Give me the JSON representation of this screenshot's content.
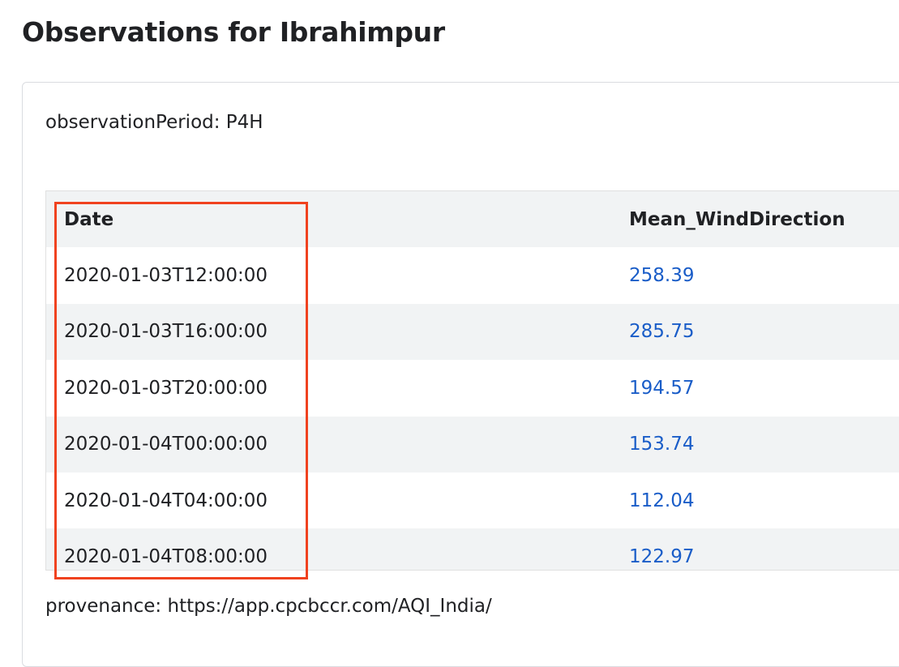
{
  "page": {
    "title": "Observations for Ibrahimpur"
  },
  "card": {
    "observation_period": "observationPeriod: P4H",
    "provenance": "provenance: https://app.cpcbccr.com/AQI_India/"
  },
  "table": {
    "columns": [
      "Date",
      "Mean_WindDirection"
    ],
    "rows": [
      {
        "date": "2020-01-03T12:00:00",
        "value": "258.39"
      },
      {
        "date": "2020-01-03T16:00:00",
        "value": "285.75"
      },
      {
        "date": "2020-01-03T20:00:00",
        "value": "194.57"
      },
      {
        "date": "2020-01-04T00:00:00",
        "value": "153.74"
      },
      {
        "date": "2020-01-04T04:00:00",
        "value": "112.04"
      },
      {
        "date": "2020-01-04T08:00:00",
        "value": "122.97"
      }
    ]
  },
  "colors": {
    "highlight": "#f0421f",
    "link": "#1a5dc8",
    "stripe": "#f1f3f4"
  }
}
